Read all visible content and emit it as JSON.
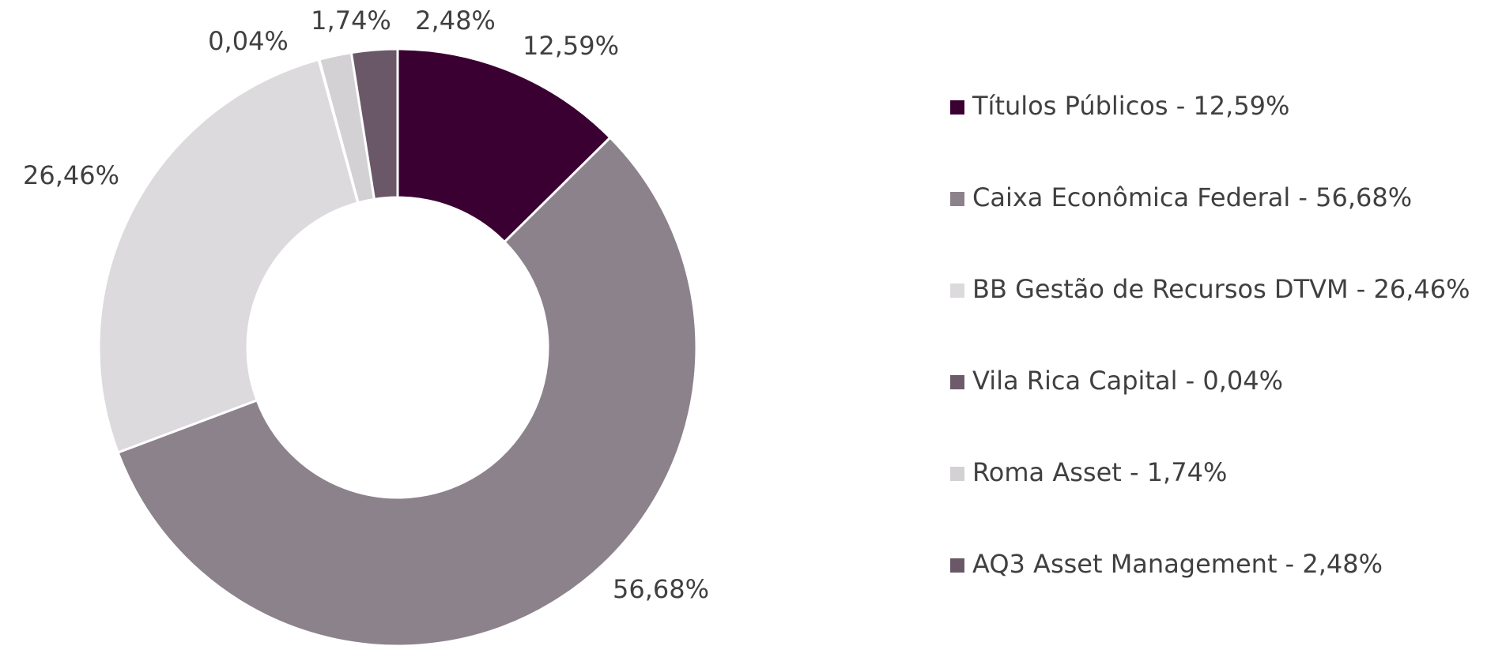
{
  "chart_data": {
    "type": "donut",
    "categories": [
      "Títulos Públicos - 12,59%",
      "Caixa Econômica Federal - 56,68%",
      "BB Gestão de Recursos DTVM - 26,46%",
      "Vila Rica Capital - 0,04%",
      "Roma Asset - 1,74%",
      "AQ3 Asset Management - 2,48%"
    ],
    "values": [
      12.59,
      56.68,
      26.46,
      0.04,
      1.74,
      2.48
    ],
    "value_labels": [
      "12,59%",
      "56,68%",
      "26,46%",
      "0,04%",
      "1,74%",
      "2,48%"
    ],
    "colors": [
      "#3b0032",
      "#8c828b",
      "#dcdadd",
      "#6d5b6b",
      "#d3d1d4",
      "#6a5868"
    ],
    "legend": "right"
  }
}
